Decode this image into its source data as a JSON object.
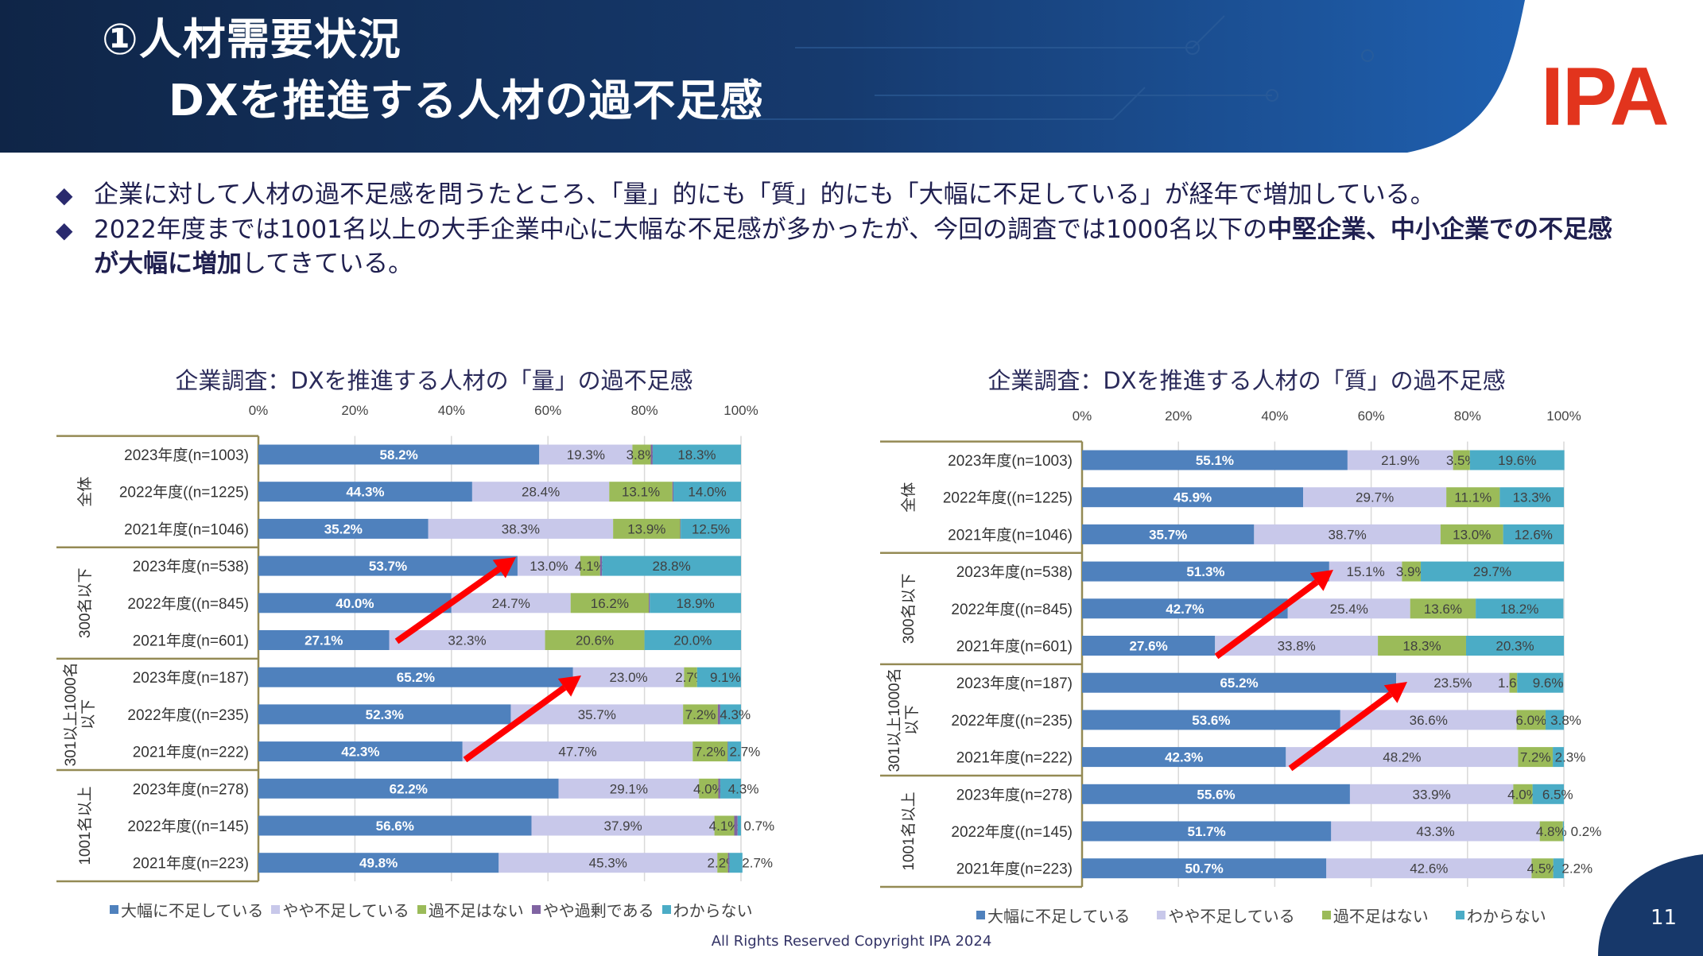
{
  "header": {
    "title_line1": "①人材需要状況",
    "title_line2": "DXを推進する人材の過不足感",
    "logo": "IPA"
  },
  "bullets": [
    {
      "text": "企業に対して人材の過不足感を問うたところ、「量」的にも「質」的にも「大幅に不足している」が経年で増加している。"
    },
    {
      "text_before": "2022年度までは1001名以上の大手企業中心に大幅な不足感が多かったが、今回の調査では1000名以下の",
      "text_bold": "中堅企業、中小企業での不足感が大幅に増加",
      "text_after": "してきている。"
    }
  ],
  "colors": {
    "series": [
      "#4f81bd",
      "#c8c8ea",
      "#9bbb59",
      "#8064a2",
      "#4bacc6"
    ],
    "arrow": "#ff0000",
    "header_dark": "#0f2547",
    "header_light": "#1f5fae",
    "logo": "#e2341d"
  },
  "chart_data": [
    {
      "type": "bar",
      "orientation": "horizontal-stacked-100",
      "title": "企業調査：DXを推進する人材の「量」の過不足感",
      "xticks": [
        "0%",
        "20%",
        "40%",
        "60%",
        "80%",
        "100%"
      ],
      "xlim": [
        0,
        100
      ],
      "grid": true,
      "legend_position": "bottom",
      "groups": [
        "全体",
        "300名以下",
        "301以上1000名\n以下",
        "1001名以上"
      ],
      "categories": [
        "2023年度(n=1003)",
        "2022年度((n=1225)",
        "2021年度(n=1046)",
        "2023年度(n=538)",
        "2022年度((n=845)",
        "2021年度(n=601)",
        "2023年度(n=187)",
        "2022年度((n=235)",
        "2021年度(n=222)",
        "2023年度(n=278)",
        "2022年度((n=145)",
        "2021年度(n=223)"
      ],
      "series": [
        {
          "name": "大幅に不足している",
          "values": [
            58.2,
            44.3,
            35.2,
            53.7,
            40.0,
            27.1,
            65.2,
            52.3,
            42.3,
            62.2,
            56.6,
            49.8
          ]
        },
        {
          "name": "やや不足している",
          "values": [
            19.3,
            28.4,
            38.3,
            13.0,
            24.7,
            32.3,
            23.0,
            35.7,
            47.7,
            29.1,
            37.9,
            45.3
          ]
        },
        {
          "name": "過不足はない",
          "values": [
            3.8,
            13.1,
            13.9,
            4.1,
            16.2,
            20.6,
            2.7,
            7.2,
            7.2,
            4.0,
            4.1,
            2.2
          ]
        },
        {
          "name": "やや過剰である",
          "values": [
            0.4,
            0.2,
            0.1,
            0.4,
            0.2,
            0,
            0,
            0.5,
            0.1,
            0.4,
            0.7,
            0.3
          ],
          "unlabeled": true
        },
        {
          "name": "わからない",
          "values": [
            18.3,
            14.0,
            12.5,
            28.8,
            18.9,
            20.0,
            9.1,
            4.3,
            2.7,
            4.3,
            0.7,
            2.7
          ]
        }
      ]
    },
    {
      "type": "bar",
      "orientation": "horizontal-stacked-100",
      "title": "企業調査：DXを推進する人材の「質」の過不足感",
      "xticks": [
        "0%",
        "20%",
        "40%",
        "60%",
        "80%",
        "100%"
      ],
      "xlim": [
        0,
        100
      ],
      "grid": true,
      "legend_position": "bottom",
      "groups": [
        "全体",
        "300名以下",
        "301以上1000名\n以下",
        "1001名以上"
      ],
      "categories": [
        "2023年度(n=1003)",
        "2022年度((n=1225)",
        "2021年度(n=1046)",
        "2023年度(n=538)",
        "2022年度((n=845)",
        "2021年度(n=601)",
        "2023年度(n=187)",
        "2022年度((n=235)",
        "2021年度(n=222)",
        "2023年度(n=278)",
        "2022年度((n=145)",
        "2021年度(n=223)"
      ],
      "series": [
        {
          "name": "大幅に不足している",
          "values": [
            55.1,
            45.9,
            35.7,
            51.3,
            42.7,
            27.6,
            65.2,
            53.6,
            42.3,
            55.6,
            51.7,
            50.7
          ]
        },
        {
          "name": "やや不足している",
          "values": [
            21.9,
            29.7,
            38.7,
            15.1,
            25.4,
            33.8,
            23.5,
            36.6,
            48.2,
            33.9,
            43.3,
            42.6
          ]
        },
        {
          "name": "過不足はない",
          "values": [
            3.5,
            11.1,
            13.0,
            3.9,
            13.6,
            18.3,
            1.6,
            6.0,
            7.2,
            4.0,
            4.8,
            4.5
          ]
        },
        {
          "name": "わからない",
          "values": [
            19.6,
            13.3,
            12.6,
            29.7,
            18.2,
            20.3,
            9.6,
            3.8,
            2.3,
            6.5,
            0.2,
            2.2
          ]
        }
      ]
    }
  ],
  "footer": {
    "copyright": "All Rights Reserved Copyright IPA 2024",
    "page_number": "11"
  }
}
